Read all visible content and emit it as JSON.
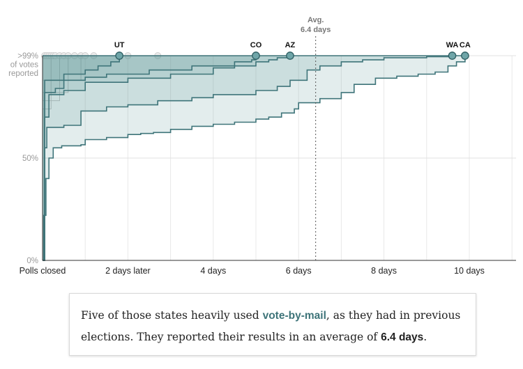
{
  "chart_data": {
    "type": "area",
    "title": "",
    "xlabel": "",
    "ylabel": "",
    "x_unit": "days after polls closed",
    "xlim": [
      0,
      11.2
    ],
    "ylim": [
      0,
      100
    ],
    "grid": true,
    "x_ticks": [
      {
        "value": 0,
        "label": "Polls closed"
      },
      {
        "value": 2,
        "label": "2 days later"
      },
      {
        "value": 4,
        "label": "4 days"
      },
      {
        "value": 6,
        "label": "6 days"
      },
      {
        "value": 8,
        "label": "8 days"
      },
      {
        "value": 10,
        "label": "10 days"
      }
    ],
    "y_ticks": [
      {
        "value": 100,
        "lines": [
          ">99%",
          "of votes",
          "reported"
        ]
      },
      {
        "value": 50,
        "lines": [
          "50%"
        ]
      },
      {
        "value": 0,
        "lines": [
          "0%"
        ]
      }
    ],
    "average": {
      "value": 6.4,
      "label_lines": [
        "Avg.",
        "6.4 days"
      ]
    },
    "series": [
      {
        "name": "CA",
        "points": [
          [
            0,
            0
          ],
          [
            0.03,
            22
          ],
          [
            0.08,
            40
          ],
          [
            0.15,
            50
          ],
          [
            0.25,
            55
          ],
          [
            0.45,
            56
          ],
          [
            0.9,
            56.5
          ],
          [
            1.0,
            59
          ],
          [
            1.5,
            60
          ],
          [
            2.0,
            61.5
          ],
          [
            2.3,
            62
          ],
          [
            2.6,
            62.5
          ],
          [
            3.0,
            64
          ],
          [
            3.5,
            65.5
          ],
          [
            4.0,
            66.5
          ],
          [
            4.5,
            67.5
          ],
          [
            5.0,
            69
          ],
          [
            5.3,
            70
          ],
          [
            5.6,
            72
          ],
          [
            5.9,
            74
          ],
          [
            6.0,
            77
          ],
          [
            6.5,
            79
          ],
          [
            7.0,
            82
          ],
          [
            7.3,
            86
          ],
          [
            7.8,
            89
          ],
          [
            8.3,
            90
          ],
          [
            8.8,
            91
          ],
          [
            9.2,
            92
          ],
          [
            9.5,
            95
          ],
          [
            9.7,
            97
          ],
          [
            9.9,
            100
          ]
        ]
      },
      {
        "name": "WA",
        "points": [
          [
            0,
            0
          ],
          [
            0.05,
            55
          ],
          [
            0.1,
            65
          ],
          [
            0.5,
            66
          ],
          [
            0.9,
            73
          ],
          [
            1.5,
            75
          ],
          [
            2.0,
            76
          ],
          [
            2.7,
            78
          ],
          [
            3.0,
            78
          ],
          [
            3.5,
            79.5
          ],
          [
            4.0,
            81
          ],
          [
            5.0,
            83
          ],
          [
            5.5,
            85
          ],
          [
            5.8,
            88
          ],
          [
            6.2,
            93
          ],
          [
            6.5,
            95
          ],
          [
            7.0,
            97
          ],
          [
            7.5,
            98
          ],
          [
            8.0,
            99
          ],
          [
            9.0,
            99.5
          ],
          [
            9.6,
            100
          ]
        ]
      },
      {
        "name": "AZ",
        "points": [
          [
            0,
            0
          ],
          [
            0.05,
            70
          ],
          [
            0.15,
            81
          ],
          [
            0.5,
            83
          ],
          [
            1.0,
            87
          ],
          [
            2.0,
            89
          ],
          [
            3.0,
            91
          ],
          [
            4.0,
            94
          ],
          [
            4.5,
            95
          ],
          [
            5.0,
            97
          ],
          [
            5.3,
            98
          ],
          [
            5.5,
            99
          ],
          [
            5.8,
            100
          ]
        ]
      },
      {
        "name": "CO",
        "points": [
          [
            0,
            0
          ],
          [
            0.05,
            82
          ],
          [
            0.3,
            84
          ],
          [
            0.5,
            88
          ],
          [
            1.0,
            89.5
          ],
          [
            1.5,
            91
          ],
          [
            2.5,
            93
          ],
          [
            3.5,
            95
          ],
          [
            4.5,
            97
          ],
          [
            4.9,
            98
          ],
          [
            5.0,
            100
          ]
        ]
      },
      {
        "name": "UT",
        "points": [
          [
            0,
            0
          ],
          [
            0.05,
            88
          ],
          [
            0.5,
            91
          ],
          [
            1.0,
            93
          ],
          [
            1.3,
            95
          ],
          [
            1.6,
            97
          ],
          [
            1.8,
            100
          ]
        ]
      }
    ],
    "other_states_finished": [
      0.05,
      0.1,
      0.15,
      0.2,
      0.25,
      0.3,
      0.4,
      0.5,
      0.6,
      0.75,
      0.9,
      1.0,
      1.2,
      2.0,
      2.7
    ]
  },
  "note": {
    "before": "Five of those states heavily used ",
    "highlight": "vote-by-mail",
    "middle": ", as they had in previous elections. They reported their results in an average of ",
    "bold": "6.4 days",
    "after": "."
  }
}
